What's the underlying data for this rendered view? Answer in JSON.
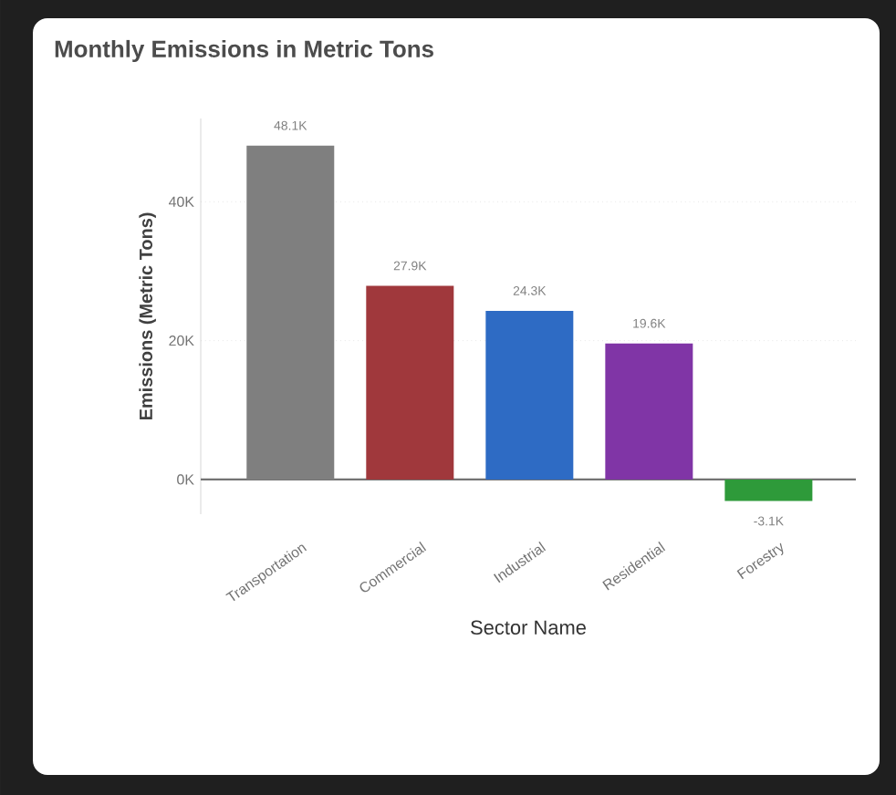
{
  "chart_data": {
    "type": "bar",
    "title": "Monthly Emissions in Metric Tons",
    "xlabel": "Sector Name",
    "ylabel": "Emissions (Metric Tons)",
    "categories": [
      "Transportation",
      "Commercial",
      "Industrial",
      "Residential",
      "Forestry"
    ],
    "values": [
      48100,
      27900,
      24300,
      19600,
      -3100
    ],
    "value_labels": [
      "48.1K",
      "27.9K",
      "24.3K",
      "19.6K",
      "-3.1K"
    ],
    "colors": [
      "#7f7f7f",
      "#a0383c",
      "#2e6bc4",
      "#8035a6",
      "#2e9a3a"
    ],
    "ylim": [
      -5000,
      52000
    ],
    "yticks": [
      {
        "value": 0,
        "label": "0K"
      },
      {
        "value": 20000,
        "label": "20K"
      },
      {
        "value": 40000,
        "label": "40K"
      }
    ],
    "grid": "y"
  }
}
